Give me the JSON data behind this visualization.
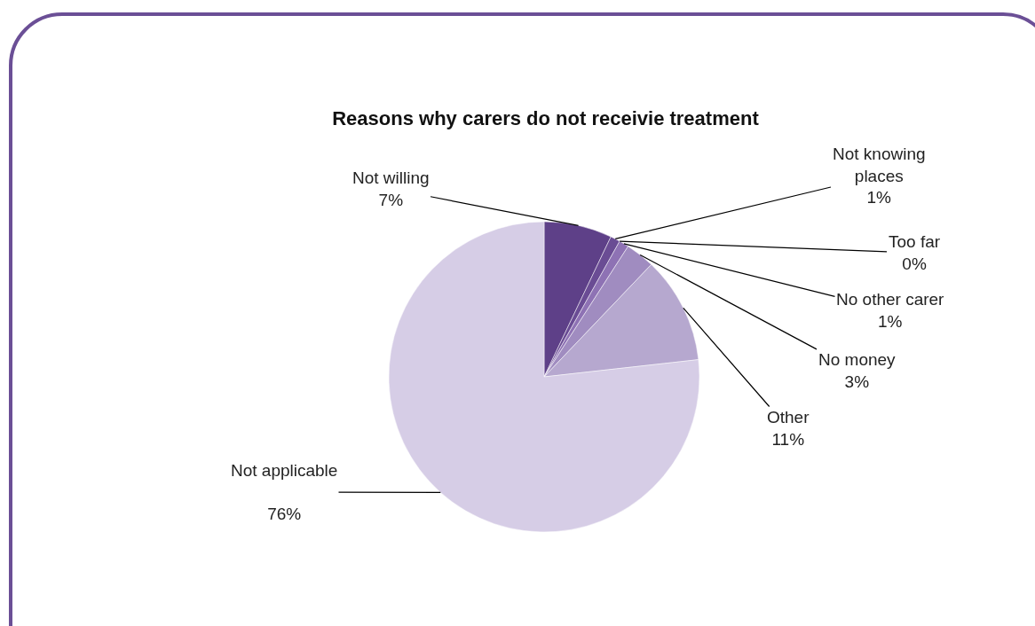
{
  "chart_data": {
    "type": "pie",
    "title": "Reasons why carers do not receivie treatment",
    "categories": [
      "Not willing",
      "Not knowing places",
      "Too far",
      "No other carer",
      "No money",
      "Other",
      "Not applicable"
    ],
    "values": [
      7,
      1,
      0,
      1,
      3,
      11,
      76
    ],
    "value_labels": [
      "7%",
      "1%",
      "0%",
      "1%",
      "3%",
      "11%",
      "76%"
    ],
    "colors": [
      "#5e4088",
      "#6a4c94",
      "#7a5ca2",
      "#8e72b4",
      "#a08cc0",
      "#b6a8cf",
      "#d6cde6"
    ],
    "legend": false
  }
}
